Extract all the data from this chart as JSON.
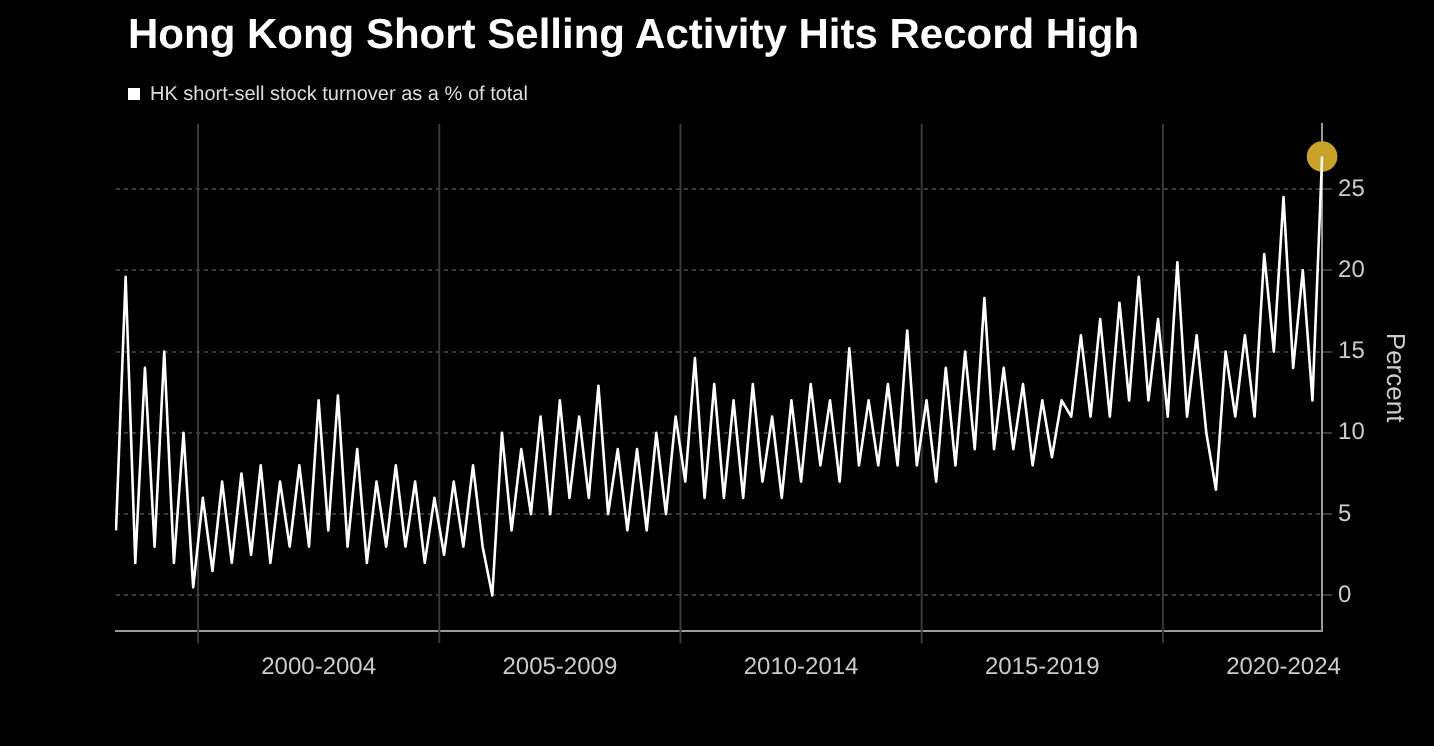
{
  "chart_data": {
    "type": "line",
    "title": "Hong Kong Short Selling Activity Hits Record High",
    "ylabel": "Percent",
    "legend": "top left",
    "grid": true,
    "marker": "none",
    "ylim": [
      -2.2,
      29
    ],
    "yticks": [
      0,
      5,
      10,
      15,
      20,
      25
    ],
    "categories": [
      null,
      null,
      null,
      null,
      null,
      null,
      null,
      null,
      null,
      null,
      null,
      null,
      null,
      null,
      null,
      null,
      null,
      null,
      null,
      null,
      null,
      "2000-2004",
      null,
      null,
      null,
      null,
      null,
      null,
      null,
      null,
      null,
      null,
      null,
      null,
      null,
      null,
      null,
      null,
      null,
      null,
      null,
      null,
      null,
      null,
      null,
      null,
      "2005-2009",
      null,
      null,
      null,
      null,
      null,
      null,
      null,
      null,
      null,
      null,
      null,
      null,
      null,
      null,
      null,
      null,
      null,
      null,
      null,
      null,
      null,
      null,
      null,
      null,
      "2010-2014",
      null,
      null,
      null,
      null,
      null,
      null,
      null,
      null,
      null,
      null,
      null,
      null,
      null,
      null,
      null,
      null,
      null,
      null,
      null,
      null,
      null,
      null,
      null,
      null,
      "2015-2019",
      null,
      null,
      null,
      null,
      null,
      null,
      null,
      null,
      null,
      null,
      null,
      null,
      null,
      null,
      null,
      null,
      null,
      null,
      null,
      null,
      null,
      null,
      null,
      null,
      "2020-2024",
      null,
      null,
      null,
      null
    ],
    "series": [
      {
        "name": "HK short-sell stock turnover as a % of total",
        "color": "#ffffff",
        "values": [
          4,
          19.6,
          2,
          14,
          3,
          15,
          2,
          10,
          0.5,
          6,
          1.5,
          7,
          2,
          7.5,
          2.5,
          8,
          2,
          7,
          3,
          8,
          3,
          12,
          4,
          12.3,
          3,
          9,
          2,
          7,
          3,
          8,
          3,
          7,
          2,
          6,
          2.5,
          7,
          3,
          8,
          3,
          0,
          10,
          4,
          9,
          5,
          11,
          5,
          12,
          6,
          11,
          6,
          12.9,
          5,
          9,
          4,
          9,
          4,
          10,
          5,
          11,
          7,
          14.6,
          6,
          13,
          6,
          12,
          6,
          13,
          7,
          11,
          6,
          12,
          7,
          13,
          8,
          12,
          7,
          15.2,
          8,
          12,
          8,
          13,
          8,
          16.3,
          8,
          12,
          7,
          14,
          8,
          15,
          9,
          18.3,
          9,
          14,
          9,
          13,
          8,
          12,
          8.5,
          12,
          11,
          16,
          11,
          17,
          11,
          18,
          12,
          19.6,
          12,
          17,
          11,
          20.5,
          11,
          16,
          10,
          6.5,
          15,
          11,
          16,
          11,
          21,
          15,
          24.5,
          14,
          20,
          12,
          27
        ]
      },
      {
        "type": "scatter",
        "color": "#c9a227",
        "marker": "circle",
        "values": [
          null,
          null,
          null,
          null,
          null,
          null,
          null,
          null,
          null,
          null,
          null,
          null,
          null,
          null,
          null,
          null,
          null,
          null,
          null,
          null,
          null,
          null,
          null,
          null,
          null,
          null,
          null,
          null,
          null,
          null,
          null,
          null,
          null,
          null,
          null,
          null,
          null,
          null,
          null,
          null,
          null,
          null,
          null,
          null,
          null,
          null,
          null,
          null,
          null,
          null,
          null,
          null,
          null,
          null,
          null,
          null,
          null,
          null,
          null,
          null,
          null,
          null,
          null,
          null,
          null,
          null,
          null,
          null,
          null,
          null,
          null,
          null,
          null,
          null,
          null,
          null,
          null,
          null,
          null,
          null,
          null,
          null,
          null,
          null,
          null,
          null,
          null,
          null,
          null,
          null,
          null,
          null,
          null,
          null,
          null,
          null,
          null,
          null,
          null,
          null,
          null,
          null,
          null,
          null,
          null,
          null,
          null,
          null,
          null,
          null,
          null,
          null,
          null,
          null,
          null,
          null,
          null,
          null,
          null,
          null,
          null,
          null,
          null,
          null,
          null,
          27
        ]
      }
    ]
  }
}
